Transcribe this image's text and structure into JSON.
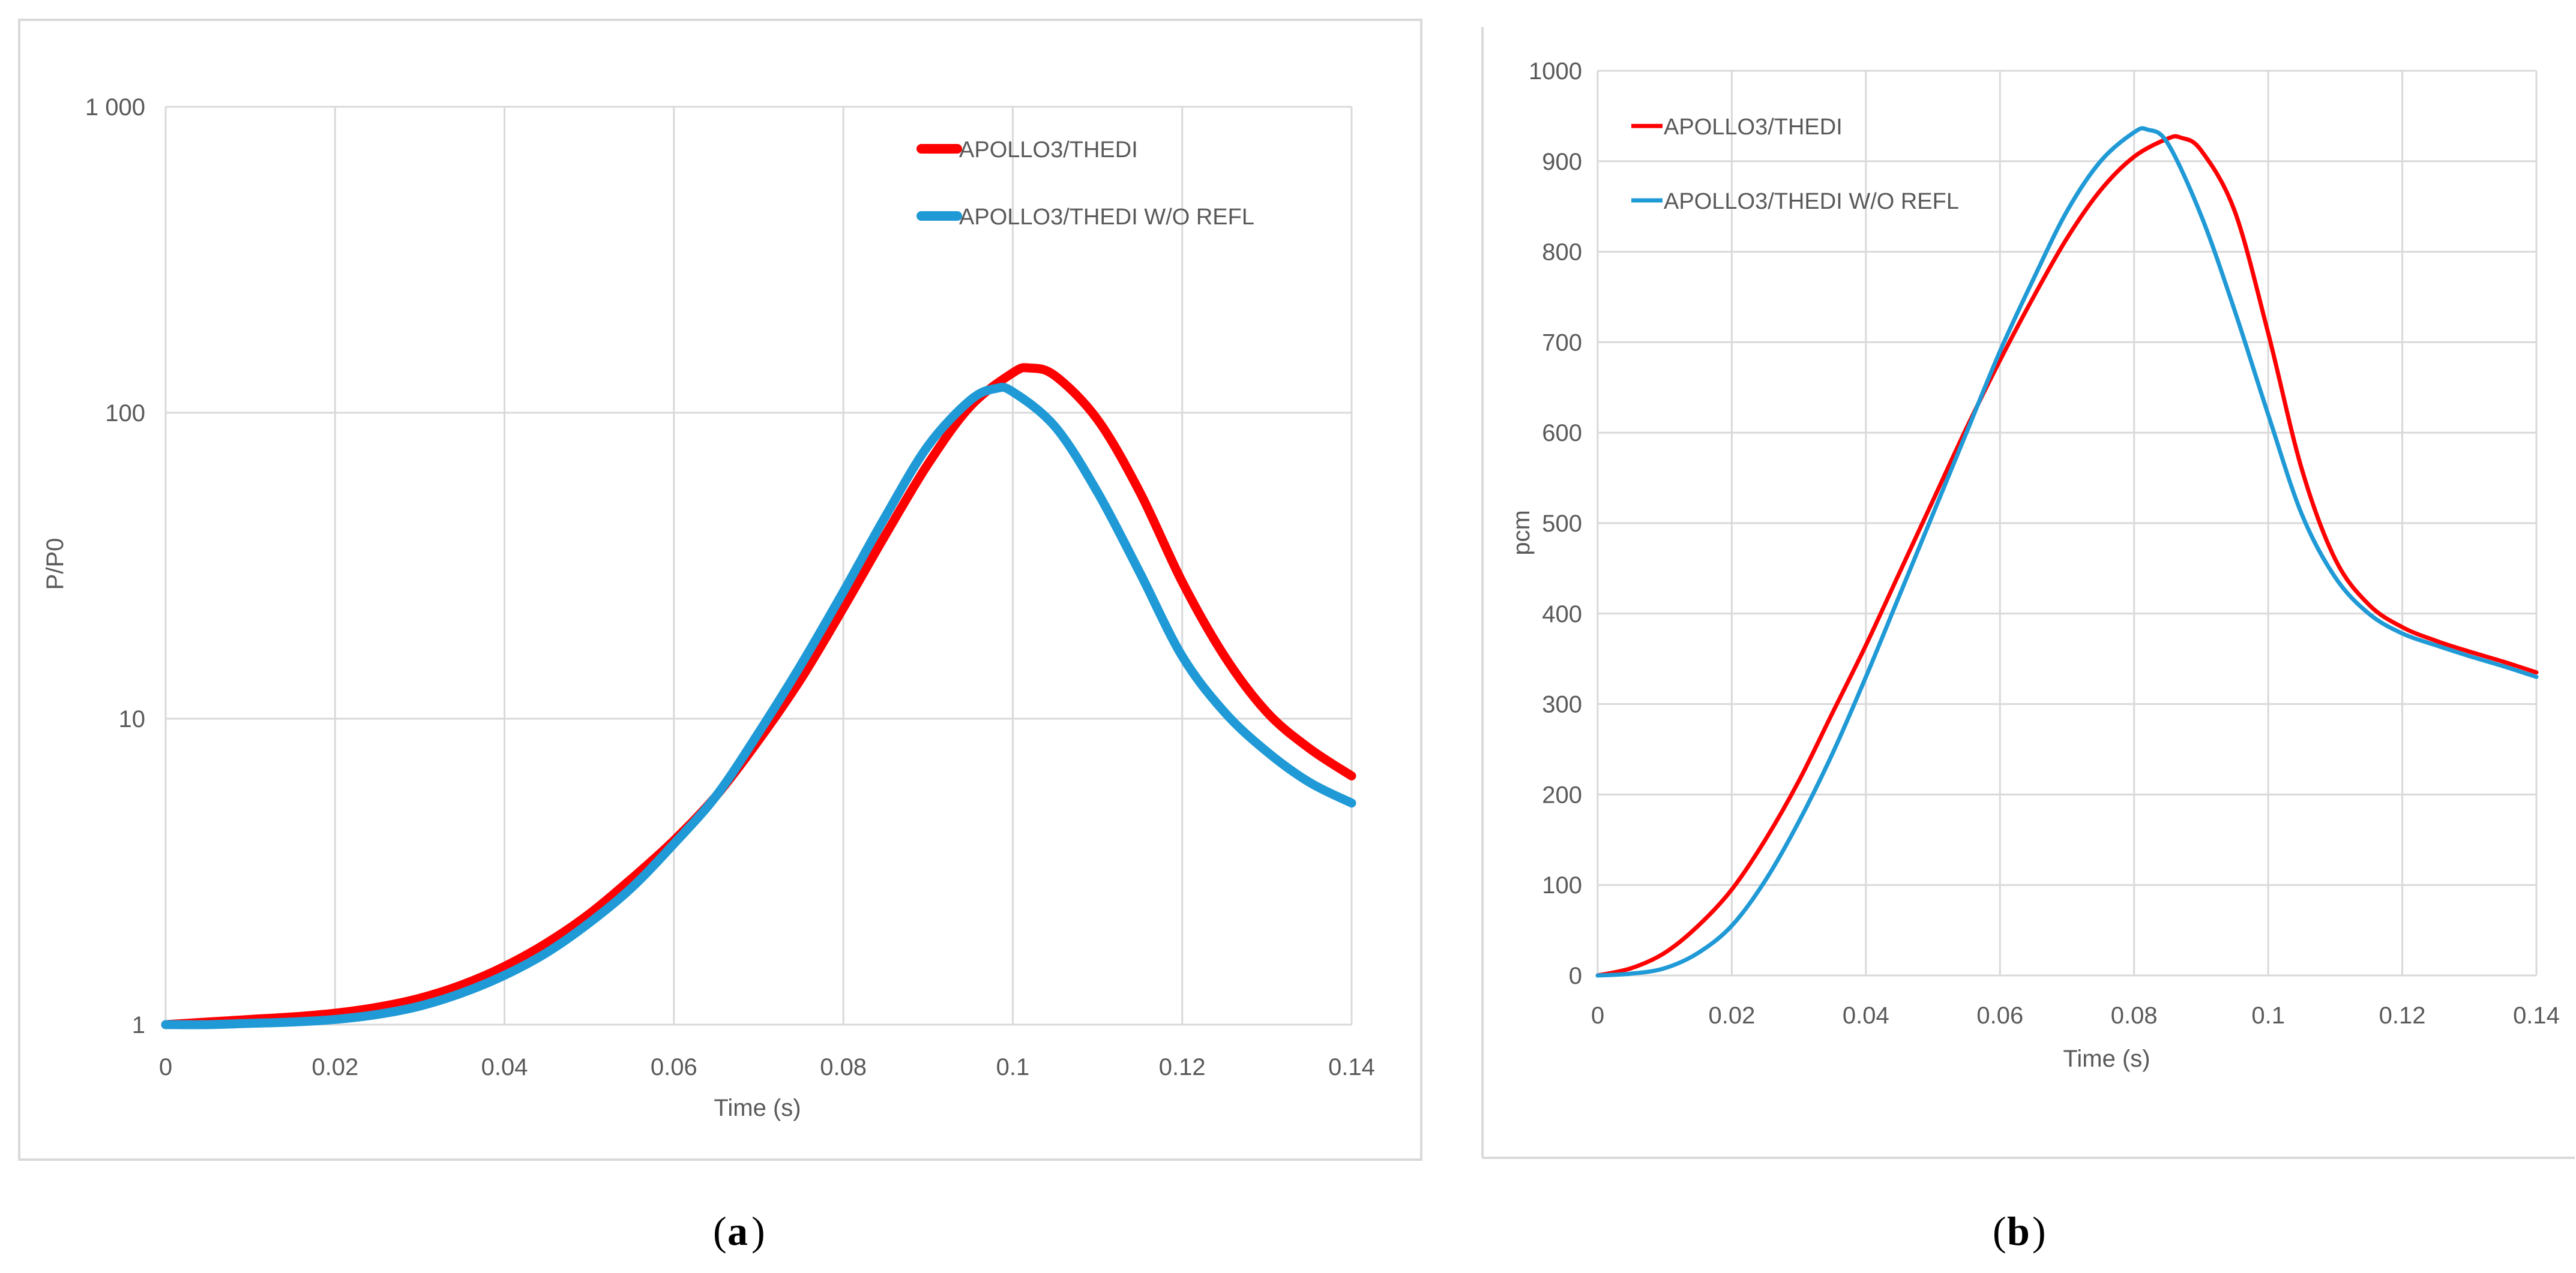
{
  "chart_data": [
    {
      "type": "line",
      "caption": "(a)",
      "caption_letter": "a",
      "xlabel": "Time (s)",
      "ylabel": "P/P0",
      "yscale": "log",
      "xlim": [
        0,
        0.14
      ],
      "ylim": [
        1,
        1000
      ],
      "x_ticks": [
        "0",
        "0.02",
        "0.04",
        "0.06",
        "0.08",
        "0.1",
        "0.12",
        "0.14"
      ],
      "y_ticks": [
        "1",
        "10",
        "100",
        "1 000"
      ],
      "legend": "top-right",
      "series": [
        {
          "name": "APOLLO3/THEDI",
          "color": "#ff0000",
          "x": [
            0,
            0.005,
            0.01,
            0.015,
            0.02,
            0.025,
            0.03,
            0.035,
            0.04,
            0.045,
            0.05,
            0.055,
            0.06,
            0.065,
            0.07,
            0.075,
            0.08,
            0.085,
            0.09,
            0.095,
            0.1,
            0.102,
            0.105,
            0.11,
            0.115,
            0.12,
            0.125,
            0.13,
            0.135,
            0.14
          ],
          "y": [
            1,
            1.02,
            1.04,
            1.06,
            1.09,
            1.14,
            1.22,
            1.35,
            1.55,
            1.85,
            2.3,
            3.0,
            4.0,
            5.6,
            8.5,
            13.5,
            23,
            40,
            68,
            105,
            135,
            140,
            132,
            95,
            55,
            28,
            16,
            10.5,
            8,
            6.5
          ]
        },
        {
          "name": "APOLLO3/THEDI W/O REFL",
          "color": "#1f9ad6",
          "x": [
            0,
            0.005,
            0.01,
            0.015,
            0.02,
            0.025,
            0.03,
            0.035,
            0.04,
            0.045,
            0.05,
            0.055,
            0.06,
            0.065,
            0.07,
            0.075,
            0.08,
            0.085,
            0.09,
            0.095,
            0.098,
            0.1,
            0.105,
            0.11,
            0.115,
            0.12,
            0.125,
            0.13,
            0.135,
            0.14
          ],
          "y": [
            1,
            1.0,
            1.01,
            1.02,
            1.04,
            1.08,
            1.15,
            1.27,
            1.45,
            1.72,
            2.15,
            2.8,
            3.9,
            5.6,
            9.0,
            15,
            26,
            46,
            78,
            110,
            120,
            117,
            90,
            55,
            30,
            16,
            10.5,
            7.8,
            6.2,
            5.3
          ]
        }
      ]
    },
    {
      "type": "line",
      "caption": "(b)",
      "caption_letter": "b",
      "xlabel": "Time (s)",
      "ylabel": "pcm",
      "yscale": "linear",
      "xlim": [
        0,
        0.14
      ],
      "ylim": [
        0,
        1000
      ],
      "x_ticks": [
        "0",
        "0.02",
        "0.04",
        "0.06",
        "0.08",
        "0.1",
        "0.12",
        "0.14"
      ],
      "y_ticks": [
        "0",
        "100",
        "200",
        "300",
        "400",
        "500",
        "600",
        "700",
        "800",
        "900",
        "1000"
      ],
      "legend": "top-left",
      "series": [
        {
          "name": "APOLLO3/THEDI",
          "color": "#ff0000",
          "x": [
            0,
            0.005,
            0.01,
            0.015,
            0.02,
            0.025,
            0.03,
            0.035,
            0.04,
            0.045,
            0.05,
            0.055,
            0.06,
            0.065,
            0.07,
            0.075,
            0.08,
            0.085,
            0.087,
            0.09,
            0.095,
            0.1,
            0.105,
            0.11,
            0.115,
            0.12,
            0.125,
            0.13,
            0.135,
            0.14
          ],
          "y": [
            0,
            8,
            25,
            55,
            95,
            150,
            215,
            290,
            365,
            445,
            525,
            605,
            680,
            750,
            815,
            868,
            905,
            925,
            926,
            912,
            845,
            710,
            560,
            460,
            410,
            385,
            370,
            358,
            347,
            335
          ]
        },
        {
          "name": "APOLLO3/THEDI W/O REFL",
          "color": "#1f9ad6",
          "x": [
            0,
            0.005,
            0.01,
            0.015,
            0.02,
            0.025,
            0.03,
            0.035,
            0.04,
            0.045,
            0.05,
            0.055,
            0.06,
            0.065,
            0.07,
            0.075,
            0.08,
            0.082,
            0.085,
            0.09,
            0.095,
            0.1,
            0.105,
            0.11,
            0.115,
            0.12,
            0.125,
            0.13,
            0.135,
            0.14
          ],
          "y": [
            0,
            2,
            8,
            25,
            55,
            105,
            170,
            245,
            330,
            420,
            510,
            600,
            690,
            770,
            845,
            900,
            932,
            935,
            920,
            840,
            735,
            620,
            510,
            440,
            400,
            378,
            365,
            353,
            342,
            330
          ]
        }
      ]
    }
  ]
}
